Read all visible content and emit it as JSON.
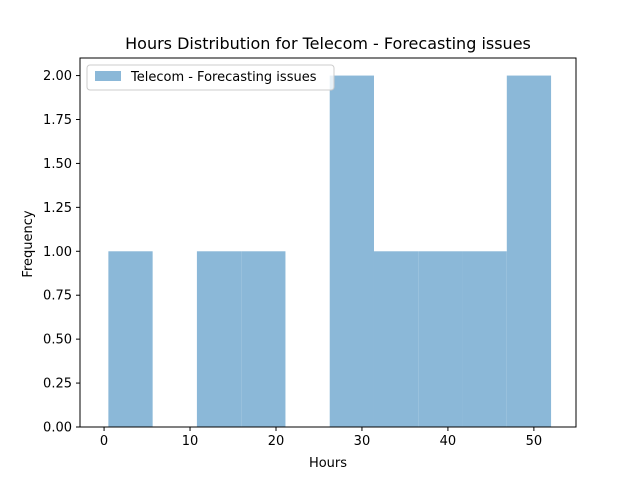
{
  "chart_data": {
    "type": "bar",
    "title": "Hours Distribution for Telecom - Forecasting issues",
    "xlabel": "Hours",
    "ylabel": "Frequency",
    "xlim": [
      -2.8,
      54.9
    ],
    "ylim": [
      0,
      2.1
    ],
    "x_ticks": [
      0,
      10,
      20,
      30,
      40,
      50
    ],
    "x_tick_labels": [
      "0",
      "10",
      "20",
      "30",
      "40",
      "50"
    ],
    "y_ticks": [
      0,
      0.25,
      0.5,
      0.75,
      1.0,
      1.25,
      1.5,
      1.75,
      2.0
    ],
    "y_tick_labels": [
      "0.00",
      "0.25",
      "0.50",
      "0.75",
      "1.00",
      "1.25",
      "1.50",
      "1.75",
      "2.00"
    ],
    "grid": false,
    "legend_position": "top-left",
    "series": [
      {
        "name": "Telecom - Forecasting issues",
        "color": "#8bb8d8",
        "bins": [
          {
            "start": 0.5,
            "end": 5.65,
            "count": 1
          },
          {
            "start": 5.65,
            "end": 10.8,
            "count": 0
          },
          {
            "start": 10.8,
            "end": 15.95,
            "count": 1
          },
          {
            "start": 15.95,
            "end": 21.1,
            "count": 1
          },
          {
            "start": 21.1,
            "end": 26.25,
            "count": 0
          },
          {
            "start": 26.25,
            "end": 31.4,
            "count": 2
          },
          {
            "start": 31.4,
            "end": 36.55,
            "count": 1
          },
          {
            "start": 36.55,
            "end": 41.7,
            "count": 1
          },
          {
            "start": 41.7,
            "end": 46.85,
            "count": 1
          },
          {
            "start": 46.85,
            "end": 52.0,
            "count": 2
          }
        ]
      }
    ]
  }
}
